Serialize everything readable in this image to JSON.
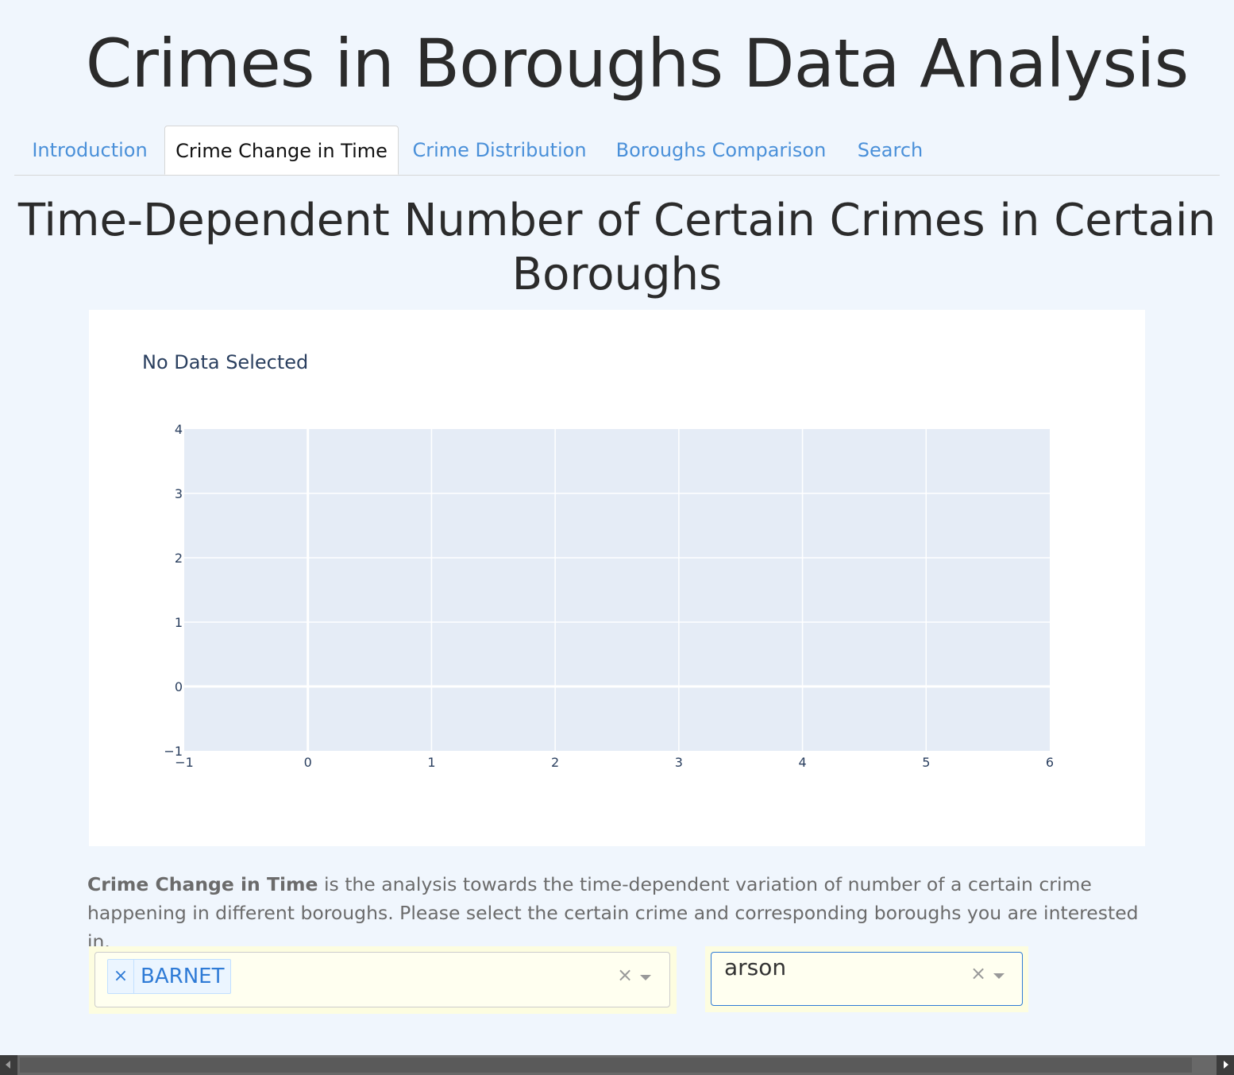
{
  "app": {
    "title": "Crimes in Boroughs Data Analysis"
  },
  "tabs": [
    {
      "label": "Introduction",
      "active": false
    },
    {
      "label": "Crime Change in Time",
      "active": true
    },
    {
      "label": "Crime Distribution",
      "active": false
    },
    {
      "label": "Boroughs Comparison",
      "active": false
    },
    {
      "label": "Search",
      "active": false
    }
  ],
  "section": {
    "title_line1": "Time-Dependent Number of Certain Crimes in Certain",
    "title_line2": "Boroughs"
  },
  "chart_data": {
    "type": "line",
    "title": "No Data Selected",
    "series": [],
    "xlabel": "",
    "ylabel": "",
    "xlim": [
      -1,
      6
    ],
    "ylim": [
      -1,
      4
    ],
    "x_ticks": [
      "−1",
      "0",
      "1",
      "2",
      "3",
      "4",
      "5",
      "6"
    ],
    "y_ticks": [
      "−1",
      "0",
      "1",
      "2",
      "3",
      "4"
    ],
    "grid": true,
    "plot_bg": "#e5ecf6"
  },
  "description": {
    "bold": "Crime Change in Time",
    "text": " is the analysis towards the time-dependent variation of number of a certain crime happening in different boroughs. Please select the certain crime and corresponding boroughs you are interested in."
  },
  "borough_dropdown": {
    "selected_chips": [
      "BARNET"
    ],
    "chip_remove_symbol": "×",
    "clear_symbol": "×"
  },
  "crime_dropdown": {
    "value": "arson",
    "clear_symbol": "×"
  },
  "colors": {
    "accent": "#4a90d9",
    "chip_text": "#2f7bd6",
    "page_bg": "#f0f6fd",
    "dropdown_wrap": "#fdfde0"
  }
}
